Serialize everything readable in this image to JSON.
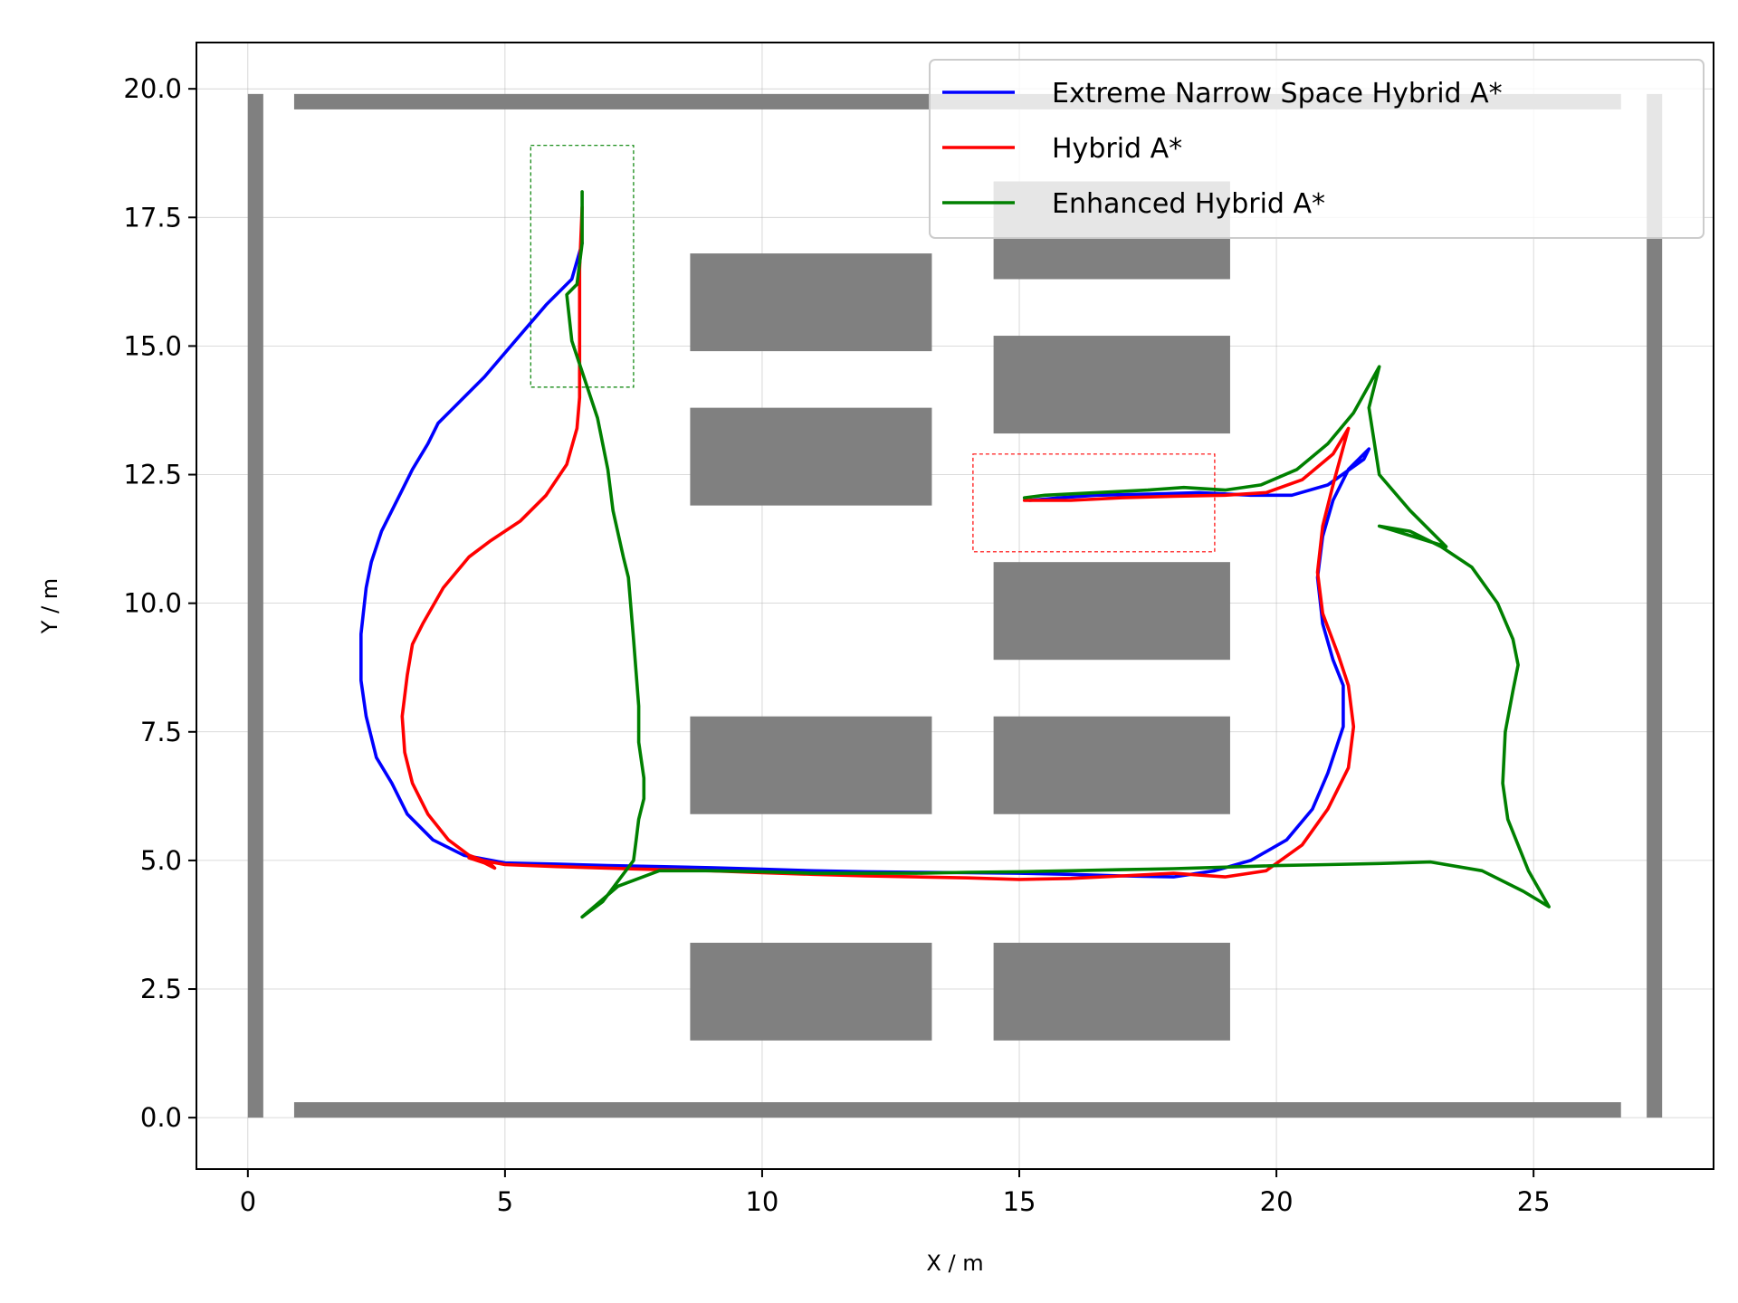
{
  "chart_data": {
    "type": "line",
    "title": "",
    "xlabel": "X / m",
    "ylabel": "Y / m",
    "xlim": [
      -1,
      28.5
    ],
    "ylim": [
      -1,
      20.9
    ],
    "x_ticks": [
      0,
      5,
      10,
      15,
      20,
      25
    ],
    "y_ticks": [
      0.0,
      2.5,
      5.0,
      7.5,
      10.0,
      12.5,
      15.0,
      17.5,
      20.0
    ],
    "x_tick_labels": [
      "0",
      "5",
      "10",
      "15",
      "20",
      "25"
    ],
    "y_tick_labels": [
      "0.0",
      "2.5",
      "5.0",
      "7.5",
      "10.0",
      "12.5",
      "15.0",
      "17.5",
      "20.0"
    ],
    "grid": true,
    "legend_position": "top-right",
    "obstacle_color": "#808080",
    "obstacles": [
      {
        "x0": 0.0,
        "x1": 0.3,
        "y0": 0.0,
        "y1": 19.9
      },
      {
        "x0": 27.2,
        "x1": 27.5,
        "y0": 0.0,
        "y1": 19.9
      },
      {
        "x0": 0.9,
        "x1": 26.7,
        "y0": 0.0,
        "y1": 0.3
      },
      {
        "x0": 0.9,
        "x1": 26.7,
        "y0": 19.6,
        "y1": 19.9
      },
      {
        "x0": 8.6,
        "x1": 13.3,
        "y0": 14.9,
        "y1": 16.8
      },
      {
        "x0": 8.6,
        "x1": 13.3,
        "y0": 11.9,
        "y1": 13.8
      },
      {
        "x0": 8.6,
        "x1": 13.3,
        "y0": 5.9,
        "y1": 7.8
      },
      {
        "x0": 8.6,
        "x1": 13.3,
        "y0": 1.5,
        "y1": 3.4
      },
      {
        "x0": 14.5,
        "x1": 19.1,
        "y0": 16.3,
        "y1": 18.2
      },
      {
        "x0": 14.5,
        "x1": 19.1,
        "y0": 13.3,
        "y1": 15.2
      },
      {
        "x0": 14.5,
        "x1": 19.1,
        "y0": 8.9,
        "y1": 10.8
      },
      {
        "x0": 14.5,
        "x1": 19.1,
        "y0": 5.9,
        "y1": 7.8
      },
      {
        "x0": 14.5,
        "x1": 19.1,
        "y0": 1.5,
        "y1": 3.4
      }
    ],
    "regions": [
      {
        "x0": 5.5,
        "x1": 7.5,
        "y0": 14.2,
        "y1": 18.9,
        "color": "#008000"
      },
      {
        "x0": 14.1,
        "x1": 18.8,
        "y0": 11.0,
        "y1": 12.9,
        "color": "#ff0000"
      }
    ],
    "series": [
      {
        "name": "Extreme Narrow Space Hybrid A*",
        "color": "#0000ff",
        "x": [
          6.5,
          6.3,
          5.8,
          5.2,
          4.6,
          4.0,
          3.7,
          3.5,
          3.2,
          3.0,
          2.6,
          2.4,
          2.3,
          2.2,
          2.2,
          2.3,
          2.5,
          2.8,
          3.1,
          3.6,
          4.2,
          5.0,
          6.0,
          7.0,
          8.0,
          9.0,
          10.0,
          11.0,
          12.0,
          13.0,
          14.0,
          15.0,
          16.0,
          17.0,
          18.0,
          18.8,
          19.5,
          20.2,
          20.7,
          21.0,
          21.3,
          21.3,
          21.1,
          20.9,
          20.8,
          20.9,
          21.1,
          21.4,
          21.8,
          21.7,
          21.0,
          20.3,
          19.5,
          18.5,
          17.5,
          16.5,
          15.8,
          15.2
        ],
        "y": [
          17.0,
          16.3,
          15.8,
          15.1,
          14.4,
          13.8,
          13.5,
          13.1,
          12.6,
          12.2,
          11.4,
          10.8,
          10.3,
          9.4,
          8.5,
          7.8,
          7.0,
          6.5,
          5.9,
          5.4,
          5.1,
          4.95,
          4.93,
          4.9,
          4.88,
          4.86,
          4.83,
          4.8,
          4.78,
          4.77,
          4.76,
          4.75,
          4.73,
          4.7,
          4.68,
          4.8,
          5.0,
          5.4,
          6.0,
          6.7,
          7.6,
          8.4,
          8.9,
          9.6,
          10.5,
          11.3,
          12.0,
          12.6,
          13.0,
          12.8,
          12.3,
          12.1,
          12.1,
          12.15,
          12.12,
          12.1,
          12.05,
          12.0
        ]
      },
      {
        "name": "Hybrid A*",
        "color": "#ff0000",
        "x": [
          6.5,
          6.45,
          6.45,
          6.45,
          6.45,
          6.4,
          6.2,
          5.8,
          5.3,
          4.7,
          4.3,
          3.8,
          3.4,
          3.2,
          3.1,
          3.0,
          3.05,
          3.2,
          3.5,
          3.9,
          4.3,
          4.7,
          4.8,
          4.6,
          4.3,
          5.0,
          6.0,
          7.0,
          8.0,
          9.0,
          10.0,
          11.0,
          12.0,
          13.0,
          14.0,
          15.0,
          16.0,
          17.0,
          18.0,
          19.0,
          19.8,
          20.5,
          21.0,
          21.4,
          21.5,
          21.4,
          21.2,
          20.9,
          20.8,
          20.9,
          21.1,
          21.4,
          21.1,
          20.5,
          19.8,
          19.0,
          18.0,
          17.0,
          16.0,
          15.1
        ],
        "y": [
          17.7,
          16.5,
          15.5,
          14.8,
          14.0,
          13.4,
          12.7,
          12.1,
          11.6,
          11.2,
          10.9,
          10.3,
          9.6,
          9.2,
          8.6,
          7.8,
          7.1,
          6.5,
          5.9,
          5.4,
          5.1,
          4.95,
          4.85,
          4.95,
          5.05,
          4.92,
          4.88,
          4.85,
          4.82,
          4.8,
          4.76,
          4.73,
          4.7,
          4.68,
          4.66,
          4.63,
          4.65,
          4.7,
          4.75,
          4.68,
          4.8,
          5.3,
          6.0,
          6.8,
          7.6,
          8.4,
          9.0,
          9.8,
          10.6,
          11.5,
          12.3,
          13.4,
          12.9,
          12.4,
          12.15,
          12.1,
          12.08,
          12.05,
          12.0,
          12.0
        ]
      },
      {
        "name": "Enhanced Hybrid A*",
        "color": "#008000",
        "x": [
          6.5,
          6.5,
          6.4,
          6.2,
          6.3,
          6.6,
          6.8,
          7.0,
          7.1,
          7.3,
          7.4,
          7.5,
          7.6,
          7.6,
          7.7,
          7.7,
          7.6,
          7.55,
          7.5,
          7.2,
          6.9,
          6.5,
          7.2,
          8.0,
          9.0,
          10.0,
          11.0,
          12.0,
          13.0,
          14.0,
          15.0,
          16.0,
          17.0,
          18.0,
          19.0,
          20.0,
          21.0,
          22.0,
          23.0,
          24.0,
          24.8,
          25.3,
          24.9,
          24.5,
          24.4,
          24.45,
          24.6,
          24.7,
          24.6,
          24.3,
          23.8,
          23.2,
          22.6,
          22.0,
          23.3,
          22.6,
          22.0,
          21.8,
          22.0,
          21.5,
          21.0,
          20.4,
          19.7,
          19.0,
          18.2,
          17.5,
          16.5,
          15.5,
          15.1
        ],
        "y": [
          18.0,
          17.0,
          16.2,
          16.0,
          15.1,
          14.2,
          13.6,
          12.6,
          11.8,
          10.9,
          10.5,
          9.3,
          8.0,
          7.3,
          6.6,
          6.2,
          5.8,
          5.4,
          5.0,
          4.6,
          4.2,
          3.9,
          4.5,
          4.8,
          4.8,
          4.78,
          4.75,
          4.75,
          4.75,
          4.77,
          4.78,
          4.8,
          4.82,
          4.84,
          4.87,
          4.9,
          4.92,
          4.94,
          4.97,
          4.8,
          4.4,
          4.1,
          4.8,
          5.8,
          6.5,
          7.5,
          8.3,
          8.8,
          9.3,
          10.0,
          10.7,
          11.1,
          11.4,
          11.5,
          11.1,
          11.8,
          12.5,
          13.8,
          14.6,
          13.7,
          13.1,
          12.6,
          12.3,
          12.2,
          12.25,
          12.2,
          12.15,
          12.1,
          12.05
        ]
      }
    ]
  }
}
